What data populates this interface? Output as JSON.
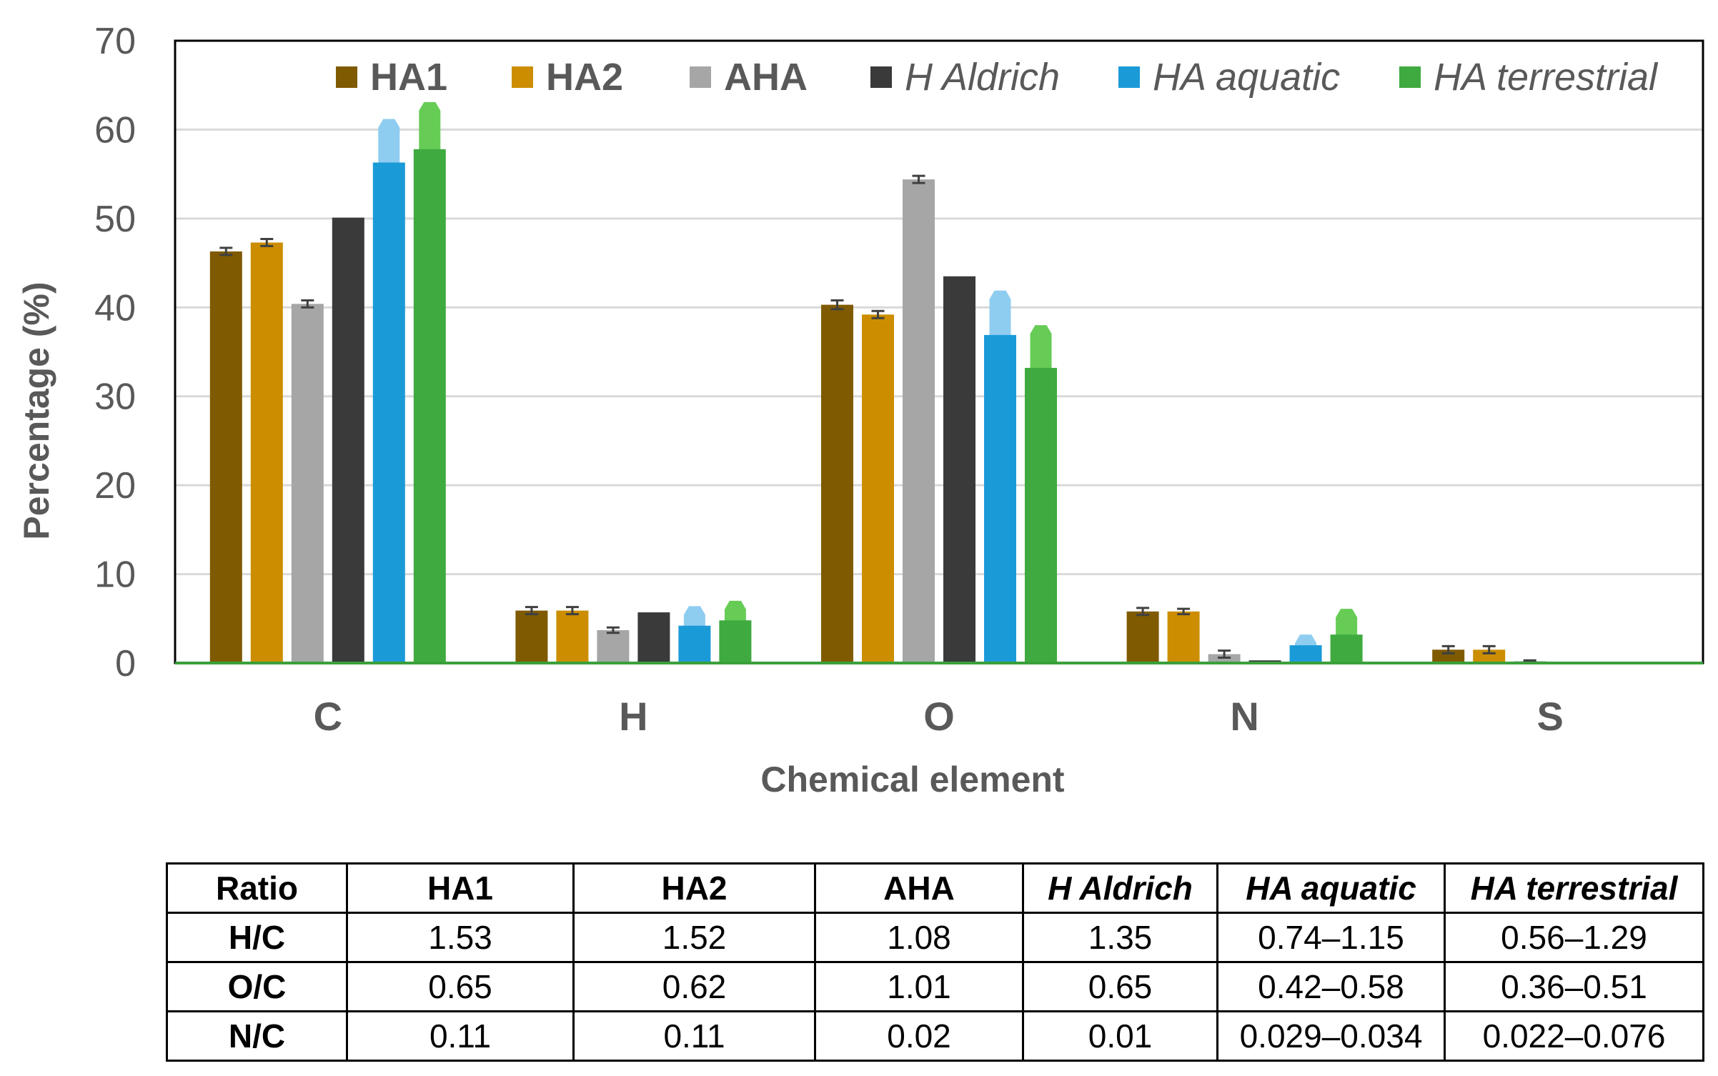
{
  "chart_data": {
    "type": "bar",
    "title": "",
    "xlabel": "Chemical element",
    "ylabel": "Percentage (%)",
    "ylim": [
      0,
      70
    ],
    "yticks": [
      0,
      10,
      20,
      30,
      40,
      50,
      60,
      70
    ],
    "grid": true,
    "legend_position": "top",
    "categories": [
      "C",
      "H",
      "O",
      "N",
      "S"
    ],
    "series": [
      {
        "name": "HA1",
        "italic": false,
        "color": "#7f5a00",
        "values": [
          46.3,
          5.9,
          40.3,
          5.8,
          1.5
        ],
        "errors": [
          0.4,
          0.4,
          0.5,
          0.4,
          0.4
        ],
        "ranges": null
      },
      {
        "name": "HA2",
        "italic": false,
        "color": "#cc8e00",
        "values": [
          47.3,
          5.9,
          39.2,
          5.8,
          1.5
        ],
        "errors": [
          0.4,
          0.4,
          0.4,
          0.3,
          0.4
        ],
        "ranges": null
      },
      {
        "name": "AHA",
        "italic": false,
        "color": "#a6a6a6",
        "values": [
          40.4,
          3.7,
          54.4,
          1.0,
          0.2
        ],
        "errors": [
          0.4,
          0.3,
          0.4,
          0.4,
          0.1
        ],
        "ranges": null
      },
      {
        "name": "H Aldrich",
        "italic": true,
        "color": "#3a3a3a",
        "values": [
          50.1,
          5.7,
          43.5,
          0.3,
          0.0
        ],
        "errors": null,
        "ranges": null
      },
      {
        "name": "HA aquatic",
        "italic": true,
        "color": "#1b9ad8",
        "range_color": "#8fcdf0",
        "values": [
          56.3,
          4.2,
          36.9,
          2.0,
          0.0
        ],
        "errors": null,
        "ranges": [
          [
            51.5,
            61.2
          ],
          [
            2.3,
            6.4
          ],
          [
            31.7,
            41.9
          ],
          [
            0.8,
            3.2
          ],
          null
        ]
      },
      {
        "name": "HA terrestrial",
        "italic": true,
        "color": "#3faa3f",
        "range_color": "#66cc55",
        "values": [
          57.8,
          4.8,
          33.2,
          3.2,
          0.0
        ],
        "errors": null,
        "ranges": [
          [
            52.5,
            63.1
          ],
          [
            2.6,
            7.0
          ],
          [
            28.3,
            38.0
          ],
          [
            0.5,
            6.1
          ],
          null
        ]
      }
    ]
  },
  "table": {
    "header": [
      "Ratio",
      "HA1",
      "HA2",
      "AHA",
      "H Aldrich",
      "HA aquatic",
      "HA terrestrial"
    ],
    "rows": [
      [
        "H/C",
        "1.53",
        "1.52",
        "1.08",
        "1.35",
        "0.74–1.15",
        "0.56–1.29"
      ],
      [
        "O/C",
        "0.65",
        "0.62",
        "1.01",
        "0.65",
        "0.42–0.58",
        "0.36–0.51"
      ],
      [
        "N/C",
        "0.11",
        "0.11",
        "0.02",
        "0.01",
        "0.029–0.034",
        "0.022–0.076"
      ]
    ]
  }
}
